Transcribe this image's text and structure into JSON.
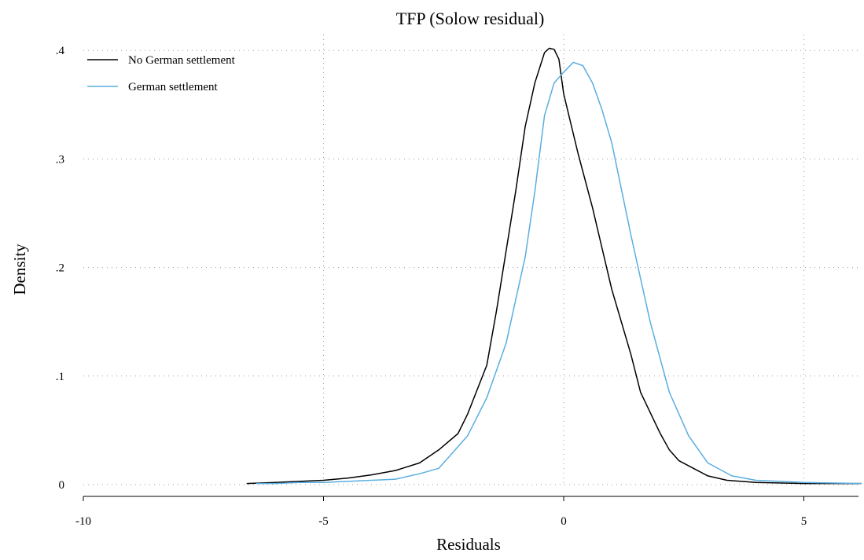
{
  "chart_data": {
    "type": "line",
    "title": "TFP (Solow residual)",
    "xlabel": "Residuals",
    "ylabel": "Density",
    "xlim": [
      -10,
      6.2
    ],
    "ylim": [
      0,
      0.42
    ],
    "xticks": [
      -10,
      -5,
      0,
      5
    ],
    "xtick_labels": [
      "-10",
      "-5",
      "0",
      "5"
    ],
    "yticks": [
      0,
      0.1,
      0.2,
      0.3,
      0.4
    ],
    "ytick_labels": [
      "0",
      ".1",
      ".2",
      ".3",
      ".4"
    ],
    "grid": true,
    "legend_position": "top-left",
    "series": [
      {
        "name": "No German settlement",
        "color": "#000000",
        "x": [
          -6.6,
          -6.0,
          -5.5,
          -5.0,
          -4.5,
          -4.0,
          -3.5,
          -3.0,
          -2.6,
          -2.2,
          -2.0,
          -1.6,
          -1.4,
          -1.0,
          -0.8,
          -0.6,
          -0.4,
          -0.3,
          -0.2,
          -0.1,
          0.0,
          0.3,
          0.6,
          1.0,
          1.4,
          1.6,
          2.0,
          2.2,
          2.4,
          3.0,
          3.4,
          4.0,
          5.0,
          6.2
        ],
        "y": [
          0.001,
          0.002,
          0.003,
          0.004,
          0.006,
          0.009,
          0.013,
          0.02,
          0.032,
          0.047,
          0.065,
          0.11,
          0.16,
          0.27,
          0.33,
          0.37,
          0.398,
          0.402,
          0.401,
          0.392,
          0.36,
          0.305,
          0.255,
          0.18,
          0.12,
          0.085,
          0.048,
          0.032,
          0.022,
          0.008,
          0.004,
          0.002,
          0.001,
          0.001
        ]
      },
      {
        "name": "German settlement",
        "color": "#5aaee0",
        "x": [
          -6.4,
          -6.0,
          -5.5,
          -5.0,
          -4.5,
          -4.0,
          -3.5,
          -3.0,
          -2.6,
          -2.4,
          -2.0,
          -1.6,
          -1.2,
          -0.8,
          -0.6,
          -0.4,
          -0.2,
          0.0,
          0.2,
          0.4,
          0.6,
          0.8,
          1.0,
          1.4,
          1.8,
          2.2,
          2.6,
          3.0,
          3.5,
          4.0,
          5.0,
          6.2
        ],
        "y": [
          0.001,
          0.001,
          0.002,
          0.002,
          0.003,
          0.004,
          0.005,
          0.01,
          0.015,
          0.025,
          0.045,
          0.08,
          0.13,
          0.21,
          0.27,
          0.34,
          0.37,
          0.38,
          0.389,
          0.386,
          0.37,
          0.345,
          0.315,
          0.23,
          0.15,
          0.085,
          0.045,
          0.02,
          0.008,
          0.004,
          0.002,
          0.001
        ]
      }
    ]
  }
}
